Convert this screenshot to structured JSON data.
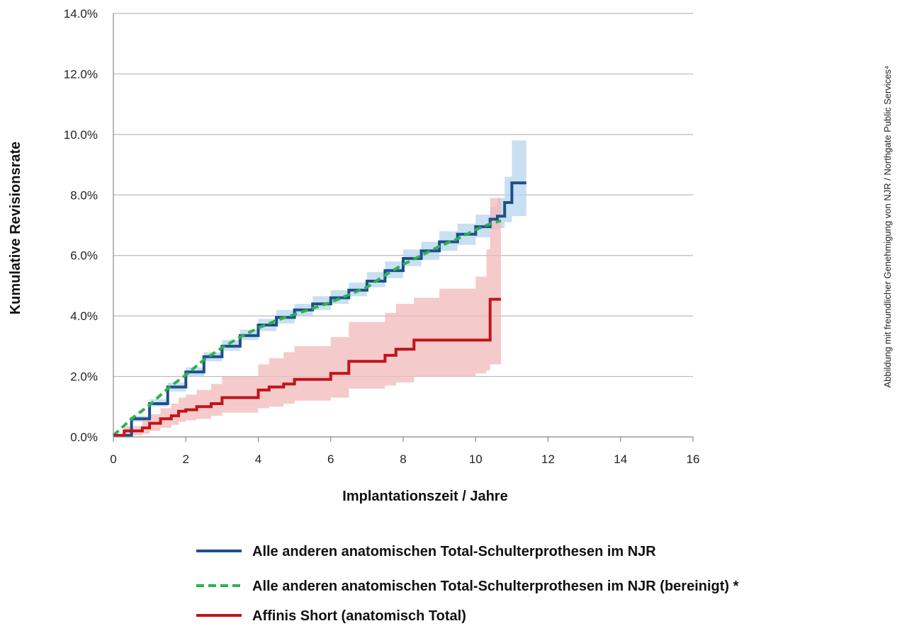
{
  "chart_data": {
    "type": "line",
    "title": "",
    "xlabel": "Implantationszeit / Jahre",
    "ylabel": "Kumulative Revisionsrate",
    "xlim": [
      0,
      16
    ],
    "ylim": [
      0,
      14
    ],
    "x_ticks": [
      "0",
      "2",
      "4",
      "6",
      "8",
      "10",
      "12",
      "14",
      "16"
    ],
    "y_ticks": [
      "0.0%",
      "2.0%",
      "4.0%",
      "6.0%",
      "8.0%",
      "10.0%",
      "12.0%",
      "14.0%"
    ],
    "grid": "horizontal",
    "legend_position": "bottom",
    "credit": "Abbildung mit freundlicher Genehmigung von NJR / Northgate Public Services⁴",
    "series": [
      {
        "name": "Alle anderen anatomischen Total-Schulterprothesen im NJR",
        "color": "#1f4e8c",
        "style": "solid",
        "step": true,
        "x": [
          0,
          0.5,
          1,
          1.5,
          2,
          2.5,
          3,
          3.5,
          4,
          4.5,
          5,
          5.5,
          6,
          6.5,
          7,
          7.5,
          8,
          8.5,
          9,
          9.5,
          10,
          10.4,
          10.6,
          10.8,
          11.0,
          11.4
        ],
        "values": [
          0.05,
          0.6,
          1.1,
          1.65,
          2.15,
          2.65,
          3.0,
          3.35,
          3.7,
          3.95,
          4.2,
          4.4,
          4.6,
          4.85,
          5.15,
          5.5,
          5.9,
          6.15,
          6.45,
          6.7,
          6.95,
          7.2,
          7.3,
          7.75,
          8.4,
          8.4
        ],
        "ci_upper": [
          0.1,
          0.7,
          1.25,
          1.8,
          2.3,
          2.8,
          3.2,
          3.55,
          3.9,
          4.2,
          4.4,
          4.65,
          4.85,
          5.1,
          5.45,
          5.8,
          6.2,
          6.45,
          6.8,
          7.05,
          7.35,
          7.6,
          7.9,
          8.6,
          9.8,
          11.2
        ],
        "ci_lower": [
          0.0,
          0.5,
          1.0,
          1.5,
          2.0,
          2.5,
          2.85,
          3.2,
          3.5,
          3.75,
          4.0,
          4.2,
          4.4,
          4.65,
          4.95,
          5.25,
          5.65,
          5.85,
          6.15,
          6.35,
          6.6,
          6.85,
          6.9,
          7.1,
          7.3,
          7.2
        ]
      },
      {
        "name": "Alle anderen anatomischen Total-Schulterprothesen im NJR (bereinigt) *",
        "color": "#2db34a",
        "style": "dashed",
        "step": false,
        "x": [
          0,
          0.5,
          1,
          1.5,
          2,
          2.5,
          3,
          3.5,
          4,
          4.5,
          5,
          5.5,
          6,
          6.5,
          7,
          7.5,
          8,
          8.5,
          9,
          9.5,
          10,
          10.3,
          10.7
        ],
        "values": [
          0.05,
          0.6,
          1.05,
          1.6,
          2.05,
          2.55,
          2.95,
          3.3,
          3.6,
          3.85,
          4.05,
          4.25,
          4.45,
          4.7,
          4.95,
          5.35,
          5.7,
          6.0,
          6.3,
          6.55,
          6.85,
          7.0,
          7.15
        ]
      },
      {
        "name": "Affinis Short (anatomisch Total)",
        "color": "#c0141c",
        "style": "solid",
        "step": true,
        "x": [
          0,
          0.3,
          0.8,
          1.0,
          1.3,
          1.6,
          1.8,
          2.0,
          2.3,
          2.7,
          3.0,
          4.0,
          4.3,
          4.7,
          5.0,
          5.5,
          6.0,
          6.5,
          7.5,
          7.8,
          8.3,
          9.0,
          10.0,
          10.3,
          10.4,
          10.7
        ],
        "values": [
          0.05,
          0.2,
          0.3,
          0.45,
          0.6,
          0.7,
          0.85,
          0.9,
          1.0,
          1.1,
          1.3,
          1.55,
          1.65,
          1.75,
          1.9,
          1.9,
          2.1,
          2.5,
          2.7,
          2.9,
          3.2,
          3.2,
          3.2,
          3.2,
          4.55,
          4.55
        ],
        "ci_upper": [
          0.1,
          0.35,
          0.55,
          0.75,
          0.95,
          1.1,
          1.3,
          1.4,
          1.55,
          1.75,
          2.0,
          2.4,
          2.6,
          2.8,
          3.0,
          3.0,
          3.3,
          3.8,
          4.1,
          4.4,
          4.6,
          4.9,
          5.3,
          6.2,
          7.9,
          8.1
        ],
        "ci_lower": [
          0.0,
          0.05,
          0.1,
          0.2,
          0.3,
          0.4,
          0.5,
          0.55,
          0.6,
          0.7,
          0.8,
          0.95,
          1.0,
          1.1,
          1.2,
          1.2,
          1.3,
          1.6,
          1.7,
          1.8,
          2.0,
          2.0,
          2.1,
          2.2,
          2.4,
          2.4
        ]
      }
    ]
  }
}
